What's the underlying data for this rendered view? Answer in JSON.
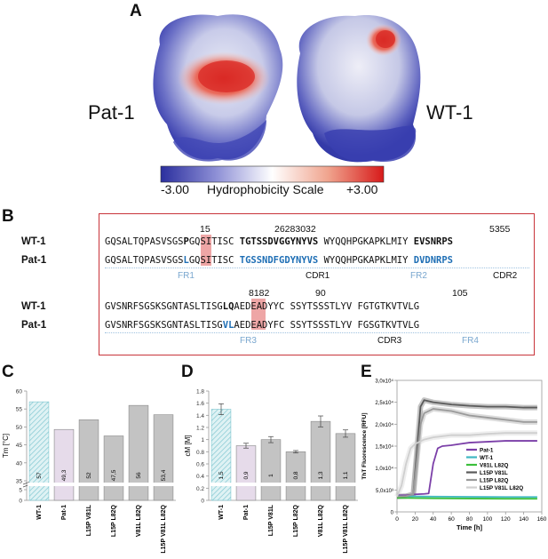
{
  "panelA": {
    "letter": "A",
    "left_label": "Pat-1",
    "right_label": "WT-1",
    "scale": {
      "min_label": "-3.00",
      "title": "Hydrophobicity Scale",
      "max_label": "+3.00",
      "colors": [
        "#2b2f9e",
        "#8e90d6",
        "#ffffff",
        "#f0a48e",
        "#d71a1a"
      ]
    }
  },
  "panelB": {
    "letter": "B",
    "row1": {
      "numbers": [
        "15",
        "26283032",
        "5355"
      ],
      "wt": {
        "label": "WT-1",
        "seg1": "GQSALTQPASVSGS",
        "hl": "P",
        "seg2": "GQSITISC",
        "seg3": "TGTSSDVGGYNYVS",
        "seg4": "WYQQHPGKAPKLMIY",
        "seg5": "EVSNRPS"
      },
      "pat": {
        "label": "Pat-1",
        "seg1": "GQSALTQPASVSGS",
        "hl": "L",
        "seg2": "GQSITISC",
        "seg3": "TGSSNDFGDYNYVS",
        "seg4": "WYQQHPGKAPKLMIY",
        "seg5": "DVDNRPS"
      },
      "regions": [
        "FR1",
        "CDR1",
        "FR2",
        "CDR2"
      ]
    },
    "row2": {
      "numbers": [
        "8182",
        "90",
        "105"
      ],
      "wt": {
        "label": "WT-1",
        "seg1": "GVSNRFSGSKSGNTASLTISG",
        "hl": "LQ",
        "seg2": "AEDEADYYC",
        "seg3": "SSYTSSSTLYV",
        "seg4": "FGTGTKVTVLG"
      },
      "pat": {
        "label": "Pat-1",
        "seg1": "GVSNRFSGSKSGNTASLTISG",
        "hl": "VL",
        "seg2": "AEDEADYFC",
        "seg3": "SSYTSSSTLYV",
        "seg4": "FGSGTKVTVLG"
      },
      "regions": [
        "FR3",
        "CDR3",
        "FR4"
      ]
    }
  },
  "panelC": {
    "letter": "C",
    "chart_data": {
      "type": "bar",
      "ylabel": "Tm [°C]",
      "ylim": [
        0,
        60
      ],
      "y_ticks": [
        "0",
        "5",
        "35",
        "40",
        "45",
        "50",
        "55",
        "60"
      ],
      "axis_break": true,
      "categories": [
        "WT-1",
        "Pat-1",
        "L15P V81L",
        "L15P L82Q",
        "V81L L82Q",
        "L15P V81L L82Q"
      ],
      "values": [
        57,
        49.3,
        52,
        47.5,
        56,
        53.4
      ],
      "value_labels": [
        "57",
        "49,3",
        "52",
        "47,5",
        "56",
        "53,4"
      ],
      "colors": [
        "#bfe3e8",
        "#e6dbea",
        "#c3c3c3",
        "#c3c3c3",
        "#c3c3c3",
        "#c3c3c3"
      ]
    }
  },
  "panelD": {
    "letter": "D",
    "chart_data": {
      "type": "bar",
      "ylabel": "cM [M]",
      "ylim": [
        0,
        1.8
      ],
      "y_ticks": [
        "0",
        "0.2",
        "0.4",
        "0.6",
        "0.8",
        "1",
        "1.2",
        "1.4",
        "1.6",
        "1.8"
      ],
      "categories": [
        "WT-1",
        "Pat-1",
        "L15P V81L",
        "L15P L82Q",
        "V81L L82Q",
        "L15P V81L L82Q"
      ],
      "values": [
        1.5,
        0.9,
        1.0,
        0.8,
        1.3,
        1.1
      ],
      "errors": [
        0.09,
        0.04,
        0.05,
        0.02,
        0.09,
        0.06
      ],
      "value_labels": [
        "1,5",
        "0,9",
        "1",
        "0,8",
        "1,3",
        "1,1"
      ],
      "colors": [
        "#bfe3e8",
        "#e6dbea",
        "#c3c3c3",
        "#c3c3c3",
        "#c3c3c3",
        "#c3c3c3"
      ]
    }
  },
  "panelE": {
    "letter": "E",
    "chart_data": {
      "type": "line",
      "xlabel": "Time [h]",
      "ylabel": "ThT Fluorescence [RFU]",
      "xlim": [
        0,
        160
      ],
      "ylim": [
        0,
        30000
      ],
      "x_ticks": [
        "0",
        "20",
        "40",
        "60",
        "80",
        "100",
        "120",
        "140",
        "160"
      ],
      "y_ticks": [
        "0",
        "5,0x10³",
        "1,0x10⁴",
        "1,5x10⁴",
        "2,0x10⁴",
        "2,5x10⁴",
        "3,0x10⁴"
      ],
      "legend_position": "lower-right",
      "series": [
        {
          "name": "Pat-1",
          "color": "#7b3fa8",
          "x": [
            0,
            10,
            20,
            30,
            35,
            40,
            45,
            50,
            60,
            70,
            80,
            100,
            120,
            140,
            155
          ],
          "y": [
            3800,
            3800,
            4000,
            4100,
            4200,
            11000,
            14500,
            15000,
            15200,
            15500,
            15800,
            16000,
            16200,
            16200,
            16200
          ]
        },
        {
          "name": "WT-1",
          "color": "#3fb8c2",
          "x": [
            0,
            40,
            80,
            120,
            155
          ],
          "y": [
            3600,
            3500,
            3450,
            3400,
            3400
          ]
        },
        {
          "name": "V81L L82Q",
          "color": "#3cbf3c",
          "x": [
            0,
            40,
            80,
            120,
            155
          ],
          "y": [
            3200,
            3100,
            3050,
            3000,
            3000
          ]
        },
        {
          "name": "L15P V81L",
          "color": "#5a5a5a",
          "x": [
            0,
            10,
            18,
            22,
            26,
            30,
            40,
            60,
            80,
            100,
            120,
            140,
            155
          ],
          "y": [
            3500,
            3600,
            4000,
            14000,
            24000,
            25500,
            25000,
            24500,
            24200,
            24000,
            24000,
            23800,
            23800
          ]
        },
        {
          "name": "L15P L82Q",
          "color": "#9a9a9a",
          "x": [
            0,
            10,
            18,
            22,
            26,
            30,
            40,
            60,
            80,
            100,
            120,
            140,
            155
          ],
          "y": [
            3500,
            3600,
            4000,
            12000,
            20000,
            22500,
            23500,
            23000,
            22000,
            21500,
            21000,
            20500,
            20500
          ]
        },
        {
          "name": "L15P V81L L82Q",
          "color": "#cfcfcf",
          "x": [
            0,
            5,
            10,
            15,
            20,
            30,
            40,
            60,
            80,
            100,
            120,
            140,
            155
          ],
          "y": [
            3500,
            6000,
            11000,
            14500,
            15500,
            16500,
            17000,
            17500,
            17500,
            17800,
            18000,
            18000,
            18000
          ]
        }
      ]
    }
  }
}
